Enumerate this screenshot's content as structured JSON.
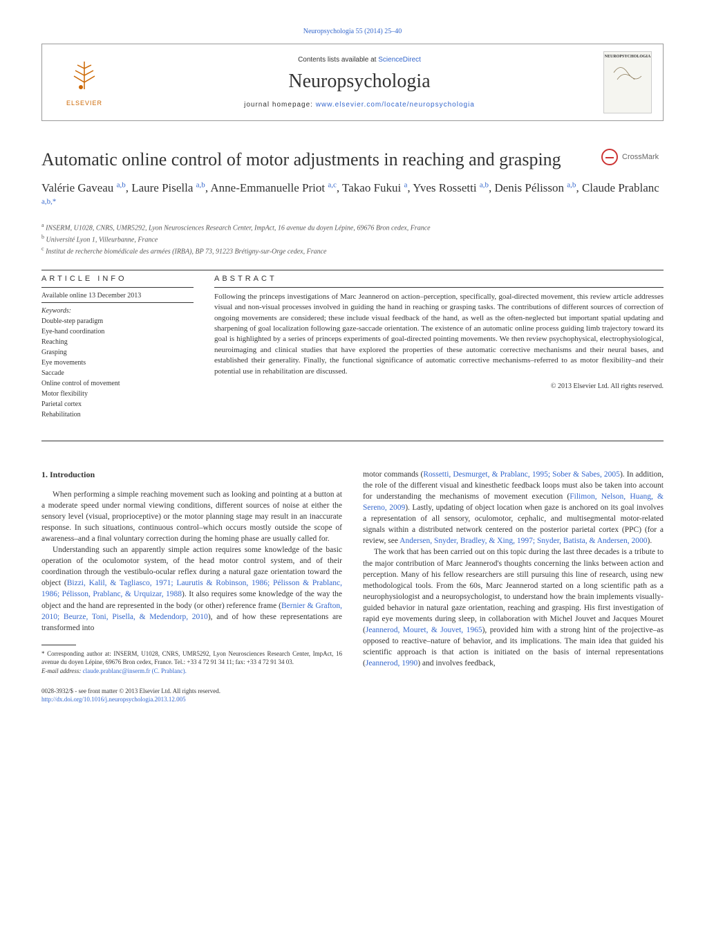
{
  "top_link": "Neuropsychologia 55 (2014) 25–40",
  "header": {
    "contents_prefix": "Contents lists available at ",
    "sciencedirect": "ScienceDirect",
    "journal": "Neuropsychologia",
    "homepage_prefix": "journal homepage: ",
    "homepage_url": "www.elsevier.com/locate/neuropsychologia",
    "publisher": "ELSEVIER",
    "cover_title": "NEUROPSYCHOLOGIA"
  },
  "crossmark": "CrossMark",
  "title": "Automatic online control of motor adjustments in reaching and grasping",
  "authors_html": "Valérie Gaveau <span class='sup'>a,b</span>, Laure Pisella <span class='sup'>a,b</span>, Anne-Emmanuelle Priot <span class='sup'>a,c</span>, Takao Fukui <span class='sup'>a</span>, Yves Rossetti <span class='sup'>a,b</span>, Denis Pélisson <span class='sup'>a,b</span>, Claude Prablanc <span class='sup'>a,b,</span><span class='sup'>*</span>",
  "affiliations": [
    {
      "sup": "a",
      "text": "INSERM, U1028, CNRS, UMR5292, Lyon Neurosciences Research Center, ImpAct, 16 avenue du doyen Lépine, 69676 Bron cedex, France"
    },
    {
      "sup": "b",
      "text": "Université Lyon 1, Villeurbanne, France"
    },
    {
      "sup": "c",
      "text": "Institut de recherche biomédicale des armées (IRBA), BP 73, 91223 Brétigny-sur-Orge cedex, France"
    }
  ],
  "article_info": {
    "heading": "ARTICLE INFO",
    "available": "Available online 13 December 2013",
    "keywords_label": "Keywords:",
    "keywords": [
      "Double-step paradigm",
      "Eye-hand coordination",
      "Reaching",
      "Grasping",
      "Eye movements",
      "Saccade",
      "Online control of movement",
      "Motor flexibility",
      "Parietal cortex",
      "Rehabilitation"
    ]
  },
  "abstract": {
    "heading": "ABSTRACT",
    "text": "Following the princeps investigations of Marc Jeannerod on action–perception, specifically, goal-directed movement, this review article addresses visual and non-visual processes involved in guiding the hand in reaching or grasping tasks. The contributions of different sources of correction of ongoing movements are considered; these include visual feedback of the hand, as well as the often-neglected but important spatial updating and sharpening of goal localization following gaze-saccade orientation. The existence of an automatic online process guiding limb trajectory toward its goal is highlighted by a series of princeps experiments of goal-directed pointing movements. We then review psychophysical, electrophysiological, neuroimaging and clinical studies that have explored the properties of these automatic corrective mechanisms and their neural bases, and established their generality. Finally, the functional significance of automatic corrective mechanisms–referred to as motor flexibility–and their potential use in rehabilitation are discussed.",
    "copyright": "© 2013 Elsevier Ltd. All rights reserved."
  },
  "body": {
    "intro_heading": "1.  Introduction",
    "left_p1": "When performing a simple reaching movement such as looking and pointing at a button at a moderate speed under normal viewing conditions, different sources of noise at either the sensory level (visual, proprioceptive) or the motor planning stage may result in an inaccurate response. In such situations, continuous control–which occurs mostly outside the scope of awareness–and a final voluntary correction during the homing phase are usually called for.",
    "left_p2_a": "Understanding such an apparently simple action requires some knowledge of the basic operation of the oculomotor system, of the head motor control system, and of their coordination through the vestibulo-ocular reflex during a natural gaze orientation toward the object (",
    "left_p2_ref1": "Bizzi, Kalil, & Tagliasco, 1971; Laurutis & Robinson, 1986; Pélisson & Prablanc, 1986; Pélisson, Prablanc, & Urquizar, 1988",
    "left_p2_b": "). It also requires some knowledge of the way the object and the hand are represented in the body (or other) reference frame (",
    "left_p2_ref2": "Bernier & Grafton, 2010; Beurze, Toni, Pisella, & Medendorp, 2010",
    "left_p2_c": "), and of how these representations are transformed into",
    "right_p1_a": "motor commands (",
    "right_p1_ref1": "Rossetti, Desmurget, & Prablanc, 1995; Sober & Sabes, 2005",
    "right_p1_b": "). In addition, the role of the different visual and kinesthetic feedback loops must also be taken into account for understanding the mechanisms of movement execution (",
    "right_p1_ref2": "Filimon, Nelson, Huang, & Sereno, 2009",
    "right_p1_c": "). Lastly, updating of object location when gaze is anchored on its goal involves a representation of all sensory, oculomotor, cephalic, and multisegmental motor-related signals within a distributed network centered on the posterior parietal cortex (PPC) (for a review, see ",
    "right_p1_ref3": "Andersen, Snyder, Bradley, & Xing, 1997; Snyder, Batista, & Andersen, 2000",
    "right_p1_d": ").",
    "right_p2_a": "The work that has been carried out on this topic during the last three decades is a tribute to the major contribution of Marc Jeannerod's thoughts concerning the links between action and perception. Many of his fellow researchers are still pursuing this line of research, using new methodological tools. From the 60s, Marc Jeannerod started on a long scientific path as a neurophysiologist and a neuropsychologist, to understand how the brain implements visually-guided behavior in natural gaze orientation, reaching and grasping. His first investigation of rapid eye movements during sleep, in collaboration with Michel Jouvet and Jacques Mouret (",
    "right_p2_ref1": "Jeannerod, Mouret, & Jouvet, 1965",
    "right_p2_b": "), provided him with a strong hint of the projective–as opposed to reactive–nature of behavior, and its implications. The main idea that guided his scientific approach is that action is initiated on the basis of internal representations (",
    "right_p2_ref2": "Jeannerod, 1990",
    "right_p2_c": ") and involves feedback,"
  },
  "footnotes": {
    "corresponding": "* Corresponding author at: INSERM, U1028, CNRS, UMR5292, Lyon Neurosciences Research Center, ImpAct, 16 avenue du doyen Lépine, 69676 Bron cedex, France. Tel.: +33 4 72 91 34 11; fax: +33 4 72 91 34 03.",
    "email_label": "E-mail address: ",
    "email": "claude.prablanc@inserm.fr (C. Prablanc).",
    "issn": "0028-3932/$ - see front matter © 2013 Elsevier Ltd. All rights reserved.",
    "doi": "http://dx.doi.org/10.1016/j.neuropsychologia.2013.12.005"
  },
  "colors": {
    "link": "#3366cc",
    "elsevier": "#cc6600",
    "text": "#333333",
    "rule": "#333333"
  }
}
